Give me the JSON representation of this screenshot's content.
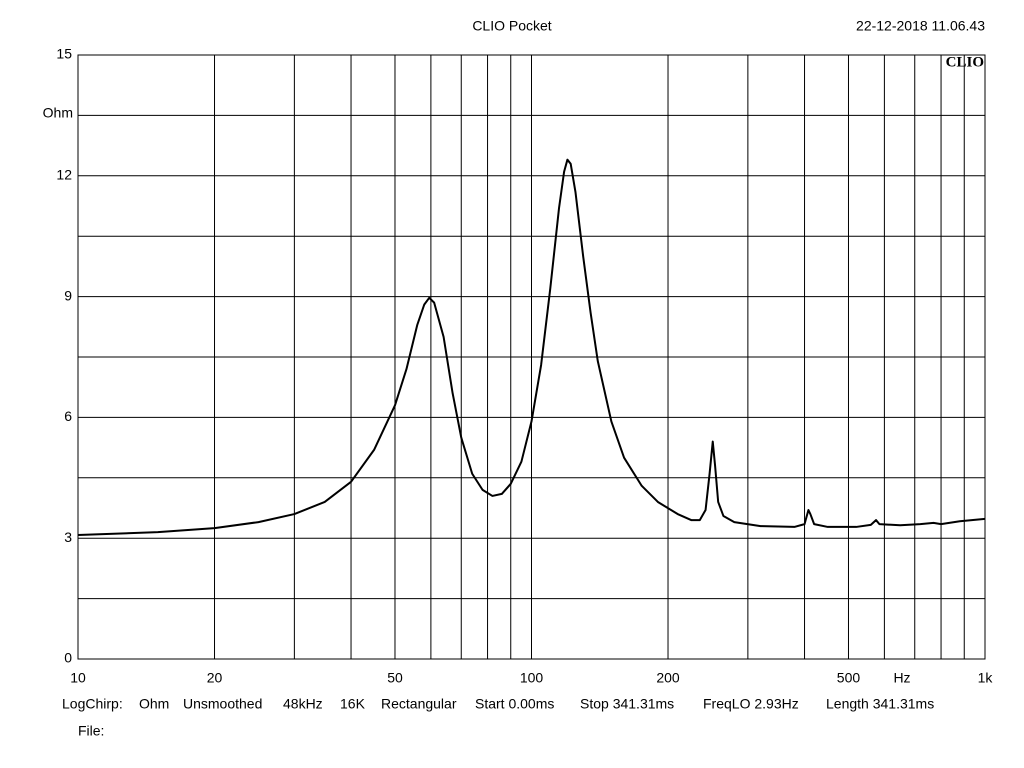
{
  "chart_data": {
    "type": "line",
    "title": "CLIO Pocket",
    "timestamp": "22-12-2018 11.06.43",
    "logo": "CLIO",
    "ylabel": "Ohm",
    "xlabel": "Hz",
    "xlog": true,
    "grid": true,
    "color": "#000000",
    "xlim": [
      10,
      1000
    ],
    "ylim": [
      0,
      15
    ],
    "xticks": [
      10,
      20,
      50,
      100,
      200,
      500,
      {
        "value": 1000,
        "label": "1k"
      }
    ],
    "xminor": [
      30,
      40,
      60,
      70,
      80,
      90,
      300,
      400,
      600,
      700,
      800,
      900
    ],
    "yticks": [
      0,
      3,
      6,
      9,
      12,
      15
    ],
    "yminor": [
      1.5,
      4.5,
      7.5,
      10.5,
      13.5
    ],
    "x": [
      10,
      15,
      20,
      25,
      30,
      35,
      40,
      45,
      50,
      53,
      56,
      58,
      59.5,
      61,
      64,
      67,
      70,
      74,
      78,
      82,
      86,
      90,
      95,
      100,
      105,
      110,
      115,
      118,
      120,
      122,
      125,
      130,
      135,
      140,
      150,
      160,
      175,
      190,
      210,
      225,
      235,
      242,
      247,
      251,
      254,
      258,
      265,
      280,
      320,
      380,
      400,
      408,
      412,
      420,
      450,
      520,
      560,
      575,
      585,
      650,
      720,
      770,
      800,
      880,
      1000
    ],
    "values": [
      3.08,
      3.15,
      3.25,
      3.4,
      3.6,
      3.9,
      4.4,
      5.2,
      6.3,
      7.2,
      8.3,
      8.8,
      8.97,
      8.85,
      8.0,
      6.6,
      5.5,
      4.6,
      4.2,
      4.05,
      4.1,
      4.35,
      4.9,
      5.9,
      7.3,
      9.2,
      11.2,
      12.1,
      12.4,
      12.3,
      11.6,
      10.0,
      8.6,
      7.4,
      5.9,
      5.0,
      4.3,
      3.9,
      3.6,
      3.45,
      3.45,
      3.7,
      4.6,
      5.4,
      4.8,
      3.9,
      3.55,
      3.4,
      3.3,
      3.28,
      3.35,
      3.7,
      3.6,
      3.35,
      3.28,
      3.28,
      3.33,
      3.45,
      3.35,
      3.32,
      3.35,
      3.38,
      3.35,
      3.42,
      3.48
    ],
    "footer": [
      "LogChirp:",
      "Ohm",
      "Unsmoothed",
      "48kHz",
      "16K",
      "Rectangular",
      "Start 0.00ms",
      "Stop 341.31ms",
      "FreqLO 2.93Hz",
      "Length 341.31ms"
    ],
    "file_label": "File:"
  }
}
